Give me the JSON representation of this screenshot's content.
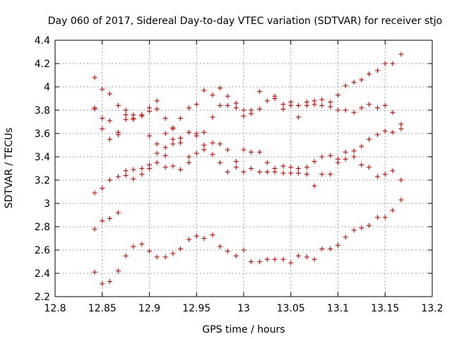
{
  "chart_data": {
    "type": "scatter",
    "title": "Day 060 of 2017, Sidereal Day-to-day VTEC variation (SDTVAR) for receiver stjo",
    "xlabel": "GPS time / hours",
    "ylabel": "SDTVAR / TECUs",
    "xlim": [
      12.8,
      13.2
    ],
    "ylim": [
      2.2,
      4.4
    ],
    "xticks": [
      12.8,
      12.85,
      12.9,
      12.95,
      13.0,
      13.05,
      13.1,
      13.15,
      13.2
    ],
    "xtick_labels": [
      "12.8",
      "12.85",
      "12.9",
      "12.95",
      "13",
      "13.05",
      "13.1",
      "13.15",
      "13.2"
    ],
    "yticks": [
      2.2,
      2.4,
      2.6,
      2.8,
      3.0,
      3.2,
      3.4,
      3.6,
      3.8,
      4.0,
      4.2,
      4.4
    ],
    "ytick_labels": [
      "2.2",
      "2.4",
      "2.6",
      "2.8",
      "3",
      "3.2",
      "3.4",
      "3.6",
      "3.8",
      "4",
      "4.2",
      "4.4"
    ],
    "grid": true,
    "marker": "+",
    "marker_color": "#dd0000",
    "points": [
      [
        12.842,
        4.08
      ],
      [
        12.842,
        3.82
      ],
      [
        12.842,
        3.81
      ],
      [
        12.842,
        3.09
      ],
      [
        12.842,
        2.78
      ],
      [
        12.842,
        2.41
      ],
      [
        12.85,
        3.98
      ],
      [
        12.85,
        3.73
      ],
      [
        12.85,
        3.64
      ],
      [
        12.85,
        3.13
      ],
      [
        12.85,
        2.85
      ],
      [
        12.85,
        2.31
      ],
      [
        12.858,
        3.94
      ],
      [
        12.858,
        3.71
      ],
      [
        12.858,
        3.55
      ],
      [
        12.858,
        3.2
      ],
      [
        12.858,
        2.87
      ],
      [
        12.858,
        2.33
      ],
      [
        12.867,
        3.84
      ],
      [
        12.867,
        3.61
      ],
      [
        12.867,
        3.59
      ],
      [
        12.867,
        3.23
      ],
      [
        12.867,
        2.92
      ],
      [
        12.867,
        2.42
      ],
      [
        12.875,
        3.8
      ],
      [
        12.875,
        3.76
      ],
      [
        12.875,
        3.72
      ],
      [
        12.875,
        3.28
      ],
      [
        12.875,
        3.24
      ],
      [
        12.875,
        2.55
      ],
      [
        12.883,
        3.76
      ],
      [
        12.883,
        3.73
      ],
      [
        12.883,
        3.72
      ],
      [
        12.883,
        3.29
      ],
      [
        12.883,
        3.21
      ],
      [
        12.883,
        2.63
      ],
      [
        12.892,
        3.76
      ],
      [
        12.892,
        3.75
      ],
      [
        12.892,
        3.3
      ],
      [
        12.892,
        3.25
      ],
      [
        12.892,
        2.65
      ],
      [
        12.9,
        3.82
      ],
      [
        12.9,
        3.79
      ],
      [
        12.9,
        3.58
      ],
      [
        12.9,
        3.33
      ],
      [
        12.9,
        3.3
      ],
      [
        12.9,
        2.59
      ],
      [
        12.908,
        3.88
      ],
      [
        12.908,
        3.81
      ],
      [
        12.908,
        3.51
      ],
      [
        12.908,
        3.43
      ],
      [
        12.908,
        3.35
      ],
      [
        12.908,
        2.54
      ],
      [
        12.917,
        3.73
      ],
      [
        12.917,
        3.6
      ],
      [
        12.917,
        3.48
      ],
      [
        12.917,
        3.41
      ],
      [
        12.917,
        3.31
      ],
      [
        12.917,
        2.54
      ],
      [
        12.925,
        3.65
      ],
      [
        12.925,
        3.64
      ],
      [
        12.925,
        3.55
      ],
      [
        12.925,
        3.51
      ],
      [
        12.925,
        3.32
      ],
      [
        12.925,
        2.57
      ],
      [
        12.933,
        3.73
      ],
      [
        12.933,
        3.56
      ],
      [
        12.933,
        3.52
      ],
      [
        12.933,
        3.29
      ],
      [
        12.933,
        2.61
      ],
      [
        12.942,
        3.82
      ],
      [
        12.942,
        3.61
      ],
      [
        12.942,
        3.4
      ],
      [
        12.942,
        3.35
      ],
      [
        12.942,
        2.69
      ],
      [
        12.95,
        3.85
      ],
      [
        12.95,
        3.6
      ],
      [
        12.95,
        3.58
      ],
      [
        12.95,
        3.43
      ],
      [
        12.95,
        2.72
      ],
      [
        12.958,
        3.97
      ],
      [
        12.958,
        3.61
      ],
      [
        12.958,
        3.5
      ],
      [
        12.958,
        3.46
      ],
      [
        12.958,
        2.7
      ],
      [
        12.967,
        3.93
      ],
      [
        12.967,
        3.74
      ],
      [
        12.967,
        3.52
      ],
      [
        12.967,
        3.42
      ],
      [
        12.967,
        2.73
      ],
      [
        12.975,
        3.99
      ],
      [
        12.975,
        3.84
      ],
      [
        12.975,
        3.51
      ],
      [
        12.975,
        3.35
      ],
      [
        12.975,
        2.63
      ],
      [
        12.983,
        3.92
      ],
      [
        12.983,
        3.84
      ],
      [
        12.983,
        3.46
      ],
      [
        12.983,
        3.27
      ],
      [
        12.983,
        2.59
      ],
      [
        12.992,
        3.86
      ],
      [
        12.992,
        3.82
      ],
      [
        12.992,
        3.36
      ],
      [
        12.992,
        3.31
      ],
      [
        12.992,
        2.55
      ],
      [
        13.0,
        3.8
      ],
      [
        13.0,
        3.75
      ],
      [
        13.0,
        3.46
      ],
      [
        13.0,
        3.27
      ],
      [
        13.0,
        2.6
      ],
      [
        13.008,
        3.8
      ],
      [
        13.008,
        3.77
      ],
      [
        13.008,
        3.44
      ],
      [
        13.008,
        3.3
      ],
      [
        13.008,
        2.5
      ],
      [
        13.017,
        3.96
      ],
      [
        13.017,
        3.81
      ],
      [
        13.017,
        3.44
      ],
      [
        13.017,
        3.27
      ],
      [
        13.017,
        2.5
      ],
      [
        13.025,
        3.88
      ],
      [
        13.025,
        3.35
      ],
      [
        13.025,
        3.27
      ],
      [
        13.025,
        2.52
      ],
      [
        13.033,
        3.92
      ],
      [
        13.033,
        3.9
      ],
      [
        13.033,
        3.3
      ],
      [
        13.033,
        3.27
      ],
      [
        13.033,
        2.52
      ],
      [
        13.042,
        3.85
      ],
      [
        13.042,
        3.81
      ],
      [
        13.042,
        3.32
      ],
      [
        13.042,
        3.26
      ],
      [
        13.042,
        2.52
      ],
      [
        13.05,
        3.87
      ],
      [
        13.05,
        3.84
      ],
      [
        13.05,
        3.31
      ],
      [
        13.05,
        3.26
      ],
      [
        13.05,
        2.49
      ],
      [
        13.058,
        3.84
      ],
      [
        13.058,
        3.74
      ],
      [
        13.058,
        3.3
      ],
      [
        13.058,
        3.26
      ],
      [
        13.058,
        2.55
      ],
      [
        13.067,
        3.87
      ],
      [
        13.067,
        3.84
      ],
      [
        13.067,
        3.31
      ],
      [
        13.067,
        3.25
      ],
      [
        13.067,
        2.54
      ],
      [
        13.075,
        3.88
      ],
      [
        13.075,
        3.85
      ],
      [
        13.075,
        3.36
      ],
      [
        13.075,
        3.15
      ],
      [
        13.075,
        2.52
      ],
      [
        13.083,
        3.89
      ],
      [
        13.083,
        3.84
      ],
      [
        13.083,
        3.4
      ],
      [
        13.083,
        3.25
      ],
      [
        13.083,
        2.61
      ],
      [
        13.092,
        3.87
      ],
      [
        13.092,
        3.83
      ],
      [
        13.092,
        3.41
      ],
      [
        13.092,
        3.25
      ],
      [
        13.092,
        2.61
      ],
      [
        13.1,
        3.93
      ],
      [
        13.1,
        3.8
      ],
      [
        13.1,
        3.38
      ],
      [
        13.1,
        3.35
      ],
      [
        13.1,
        2.64
      ],
      [
        13.108,
        4.01
      ],
      [
        13.108,
        3.8
      ],
      [
        13.108,
        3.44
      ],
      [
        13.108,
        3.38
      ],
      [
        13.108,
        2.71
      ],
      [
        13.117,
        4.04
      ],
      [
        13.117,
        3.78
      ],
      [
        13.117,
        3.45
      ],
      [
        13.117,
        3.4
      ],
      [
        13.117,
        2.77
      ],
      [
        13.125,
        4.06
      ],
      [
        13.125,
        3.82
      ],
      [
        13.125,
        3.49
      ],
      [
        13.125,
        3.33
      ],
      [
        13.125,
        2.79
      ],
      [
        13.133,
        4.11
      ],
      [
        13.133,
        3.85
      ],
      [
        13.133,
        3.55
      ],
      [
        13.133,
        3.31
      ],
      [
        13.133,
        2.81
      ],
      [
        13.142,
        4.14
      ],
      [
        13.142,
        3.82
      ],
      [
        13.142,
        3.59
      ],
      [
        13.142,
        3.23
      ],
      [
        13.142,
        2.88
      ],
      [
        13.15,
        4.2
      ],
      [
        13.15,
        3.84
      ],
      [
        13.15,
        3.62
      ],
      [
        13.15,
        3.25
      ],
      [
        13.15,
        2.88
      ],
      [
        13.158,
        4.2
      ],
      [
        13.158,
        3.78
      ],
      [
        13.158,
        3.61
      ],
      [
        13.158,
        3.28
      ],
      [
        13.158,
        2.94
      ],
      [
        13.167,
        4.28
      ],
      [
        13.167,
        3.68
      ],
      [
        13.167,
        3.64
      ],
      [
        13.167,
        3.2
      ],
      [
        13.167,
        3.03
      ]
    ]
  }
}
